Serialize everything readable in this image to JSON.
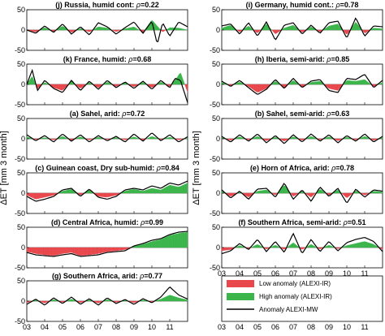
{
  "figure": {
    "ylabel": "ΔET [mm 3 month]",
    "ylabel_prefix": "ΔET [mm 3 month",
    "ylabel_suffix": "]",
    "xticks": [
      "03",
      "04",
      "05",
      "06",
      "07",
      "08",
      "09",
      "10",
      "11"
    ],
    "yticks": [
      "-50",
      "0",
      "50"
    ],
    "rho_symbol": "ρ",
    "legend": [
      {
        "label": "Low anomaly (ALEXI-IR)",
        "color": "#e8474c",
        "kind": "patch"
      },
      {
        "label": "High anomaly (ALEXI-IR)",
        "color": "#3bb54a",
        "kind": "patch"
      },
      {
        "label": "Anomaly  ALEXI-MW",
        "color": "#000000",
        "kind": "line"
      }
    ],
    "colors": {
      "low": "#e8474c",
      "high": "#3bb54a",
      "line": "#000000"
    }
  },
  "chart_data": [
    {
      "id": "j",
      "type": "area",
      "title": "(j) Russia, humid cont:",
      "rho": "=0.22",
      "ylim": [
        -50,
        50
      ],
      "x": [
        2003.0,
        2003.5,
        2004.0,
        2004.5,
        2005.0,
        2005.5,
        2006.0,
        2006.5,
        2007.0,
        2007.5,
        2008.0,
        2008.5,
        2009.0,
        2009.5,
        2010.0,
        2010.3,
        2010.6,
        2011.0,
        2011.5,
        2012.0
      ],
      "ir": [
        0,
        -5,
        6,
        -4,
        10,
        -6,
        4,
        -5,
        8,
        5,
        -4,
        3,
        8,
        -6,
        25,
        10,
        -5,
        6,
        5,
        0
      ],
      "mw": [
        0,
        -8,
        10,
        -6,
        15,
        -10,
        8,
        -12,
        18,
        8,
        -10,
        6,
        20,
        -8,
        22,
        -35,
        18,
        -15,
        20,
        8
      ]
    },
    {
      "id": "i",
      "type": "area",
      "title": "(i) Germany, humid cont.:",
      "rho": "=0.78",
      "ylim": [
        -50,
        50
      ],
      "x": [
        2003.0,
        2003.5,
        2004.0,
        2004.5,
        2005.0,
        2005.5,
        2006.0,
        2006.5,
        2007.0,
        2007.5,
        2008.0,
        2008.5,
        2009.0,
        2009.5,
        2010.0,
        2010.5,
        2011.0,
        2011.5,
        2012.0
      ],
      "ir": [
        5,
        12,
        -5,
        10,
        -8,
        15,
        -10,
        5,
        12,
        -6,
        8,
        -5,
        10,
        15,
        -12,
        20,
        -8,
        5,
        3
      ],
      "mw": [
        10,
        15,
        -10,
        18,
        -15,
        20,
        -25,
        12,
        18,
        -10,
        12,
        -8,
        18,
        22,
        -20,
        30,
        -15,
        10,
        8
      ]
    },
    {
      "id": "k",
      "type": "area",
      "title": "(k) France, humid:",
      "rho": "=0.68",
      "ylim": [
        -50,
        50
      ],
      "x": [
        2003.0,
        2003.3,
        2003.6,
        2004.0,
        2004.5,
        2005.0,
        2005.5,
        2006.0,
        2006.5,
        2007.0,
        2007.5,
        2008.0,
        2008.5,
        2009.0,
        2009.5,
        2010.0,
        2010.5,
        2011.0,
        2011.3,
        2011.6,
        2012.0
      ],
      "ir": [
        0,
        20,
        -10,
        5,
        -8,
        -15,
        8,
        -10,
        5,
        -8,
        6,
        -5,
        4,
        -6,
        5,
        -8,
        6,
        -5,
        10,
        30,
        -20
      ],
      "mw": [
        0,
        35,
        -15,
        10,
        -10,
        -20,
        10,
        -15,
        8,
        -12,
        10,
        -8,
        6,
        -10,
        8,
        -12,
        10,
        -8,
        15,
        10,
        -45
      ]
    },
    {
      "id": "h",
      "type": "area",
      "title": "(h) Iberia, semi-arid:",
      "rho": "=0.85",
      "ylim": [
        -50,
        50
      ],
      "x": [
        2003.0,
        2003.5,
        2004.0,
        2004.5,
        2005.0,
        2005.5,
        2006.0,
        2006.5,
        2007.0,
        2007.5,
        2008.0,
        2008.5,
        2009.0,
        2009.5,
        2010.0,
        2010.5,
        2011.0,
        2011.5,
        2012.0
      ],
      "ir": [
        5,
        -3,
        6,
        -5,
        -20,
        -10,
        8,
        -8,
        10,
        -6,
        5,
        8,
        -10,
        -15,
        10,
        8,
        12,
        -5,
        5
      ],
      "mw": [
        8,
        -5,
        10,
        -8,
        -25,
        -12,
        12,
        -10,
        15,
        -8,
        8,
        12,
        -15,
        -20,
        15,
        12,
        25,
        -8,
        10
      ]
    },
    {
      "id": "a",
      "type": "area",
      "title": "(a) Sahel, arid:",
      "rho": "=0.72",
      "ylim": [
        -50,
        50
      ],
      "x": [
        2003.0,
        2003.5,
        2004.0,
        2004.5,
        2005.0,
        2005.5,
        2006.0,
        2006.5,
        2007.0,
        2007.5,
        2008.0,
        2008.5,
        2009.0,
        2009.5,
        2010.0,
        2010.5,
        2011.0,
        2011.5,
        2012.0
      ],
      "ir": [
        5,
        -2,
        3,
        -3,
        6,
        -4,
        5,
        -3,
        4,
        -2,
        3,
        -3,
        5,
        -4,
        6,
        -2,
        4,
        -3,
        2
      ],
      "mw": [
        10,
        -5,
        8,
        -8,
        12,
        -6,
        10,
        -8,
        8,
        -5,
        6,
        -8,
        12,
        -6,
        15,
        -5,
        10,
        -8,
        5
      ]
    },
    {
      "id": "b",
      "type": "area",
      "title": "(b) Sahel, semi-arid:",
      "rho": "=0.63",
      "ylim": [
        -50,
        50
      ],
      "x": [
        2003.0,
        2003.5,
        2004.0,
        2004.5,
        2005.0,
        2005.5,
        2006.0,
        2006.5,
        2007.0,
        2007.5,
        2008.0,
        2008.5,
        2009.0,
        2009.5,
        2010.0,
        2010.5,
        2011.0,
        2011.5,
        2012.0
      ],
      "ir": [
        3,
        -4,
        5,
        -3,
        6,
        -5,
        4,
        -6,
        5,
        -4,
        6,
        -3,
        5,
        -5,
        4,
        -3,
        6,
        -4,
        3
      ],
      "mw": [
        6,
        -8,
        10,
        -6,
        12,
        -10,
        8,
        -12,
        10,
        -8,
        12,
        -6,
        10,
        -10,
        8,
        -6,
        12,
        -8,
        6
      ]
    },
    {
      "id": "c",
      "type": "area",
      "title": "(c) Guinean coast, Dry sub-humid:",
      "rho": "=0.84",
      "ylim": [
        -50,
        50
      ],
      "x": [
        2003.0,
        2003.5,
        2004.0,
        2004.5,
        2005.0,
        2005.5,
        2006.0,
        2006.5,
        2007.0,
        2007.5,
        2008.0,
        2008.5,
        2009.0,
        2009.5,
        2010.0,
        2010.5,
        2011.0,
        2011.5,
        2012.0
      ],
      "ir": [
        -5,
        -15,
        -10,
        -5,
        5,
        10,
        -5,
        8,
        -8,
        -10,
        -5,
        5,
        10,
        5,
        12,
        8,
        20,
        15,
        25
      ],
      "mw": [
        -8,
        -20,
        -15,
        -8,
        8,
        12,
        -8,
        10,
        -10,
        -15,
        -8,
        8,
        12,
        8,
        18,
        12,
        25,
        20,
        30
      ]
    },
    {
      "id": "e",
      "type": "area",
      "title": "(e) Horn of Africa, arid:",
      "rho": "=0.78",
      "ylim": [
        -50,
        50
      ],
      "x": [
        2003.0,
        2003.5,
        2004.0,
        2004.5,
        2005.0,
        2005.5,
        2006.0,
        2006.5,
        2007.0,
        2007.5,
        2008.0,
        2008.5,
        2009.0,
        2009.5,
        2010.0,
        2010.5,
        2011.0,
        2011.5,
        2012.0
      ],
      "ir": [
        5,
        -8,
        3,
        -10,
        5,
        8,
        -5,
        20,
        -8,
        5,
        -10,
        10,
        -5,
        8,
        -12,
        6,
        -5,
        5,
        3
      ],
      "mw": [
        8,
        -12,
        5,
        -15,
        10,
        12,
        -10,
        25,
        -15,
        8,
        -20,
        15,
        -8,
        12,
        -25,
        10,
        -10,
        8,
        5
      ]
    },
    {
      "id": "d",
      "type": "area",
      "title": "(d) Central Africa, humid:",
      "rho": "=0.99",
      "ylim": [
        -50,
        50
      ],
      "x": [
        2003.0,
        2003.5,
        2004.0,
        2004.5,
        2005.0,
        2005.5,
        2006.0,
        2006.5,
        2007.0,
        2007.5,
        2008.0,
        2008.5,
        2009.0,
        2009.5,
        2010.0,
        2010.5,
        2011.0,
        2011.5,
        2012.0
      ],
      "ir": [
        -10,
        -15,
        -18,
        -20,
        -15,
        -12,
        -20,
        -18,
        -15,
        -10,
        -8,
        -5,
        3,
        8,
        15,
        20,
        30,
        35,
        38
      ],
      "mw": [
        -12,
        -18,
        -20,
        -22,
        -18,
        -15,
        -22,
        -20,
        -18,
        -12,
        -10,
        -8,
        4,
        10,
        18,
        22,
        32,
        38,
        40
      ]
    },
    {
      "id": "f",
      "type": "area",
      "title": "(f) Southern Africa, semi-arid:",
      "rho": "=0.51",
      "ylim": [
        -50,
        50
      ],
      "x": [
        2003.0,
        2003.5,
        2004.0,
        2004.5,
        2005.0,
        2005.5,
        2006.0,
        2006.5,
        2007.0,
        2007.5,
        2008.0,
        2008.5,
        2009.0,
        2009.5,
        2010.0,
        2010.5,
        2011.0,
        2011.5,
        2012.0
      ],
      "ir": [
        -8,
        -5,
        5,
        -3,
        8,
        -4,
        6,
        -5,
        12,
        -5,
        8,
        -4,
        6,
        -3,
        5,
        10,
        15,
        8,
        -5
      ],
      "mw": [
        -15,
        -8,
        10,
        -5,
        20,
        -10,
        15,
        -12,
        35,
        -15,
        20,
        -10,
        15,
        -8,
        12,
        20,
        25,
        15,
        -10
      ]
    },
    {
      "id": "g",
      "type": "area",
      "title": "(g) Southern Africa, arid:",
      "rho": "=0.77",
      "ylim": [
        -50,
        50
      ],
      "x": [
        2003.0,
        2003.5,
        2004.0,
        2004.5,
        2005.0,
        2005.5,
        2006.0,
        2006.5,
        2007.0,
        2007.5,
        2008.0,
        2008.5,
        2009.0,
        2009.5,
        2010.0,
        2010.5,
        2011.0,
        2011.5,
        2012.0
      ],
      "ir": [
        -4,
        3,
        -5,
        4,
        -3,
        5,
        -4,
        3,
        -5,
        4,
        -3,
        2,
        -4,
        3,
        -2,
        5,
        15,
        8,
        3
      ],
      "mw": [
        -8,
        5,
        -10,
        8,
        -6,
        10,
        -8,
        6,
        -10,
        8,
        -6,
        4,
        -8,
        6,
        -4,
        10,
        35,
        15,
        5
      ]
    }
  ]
}
